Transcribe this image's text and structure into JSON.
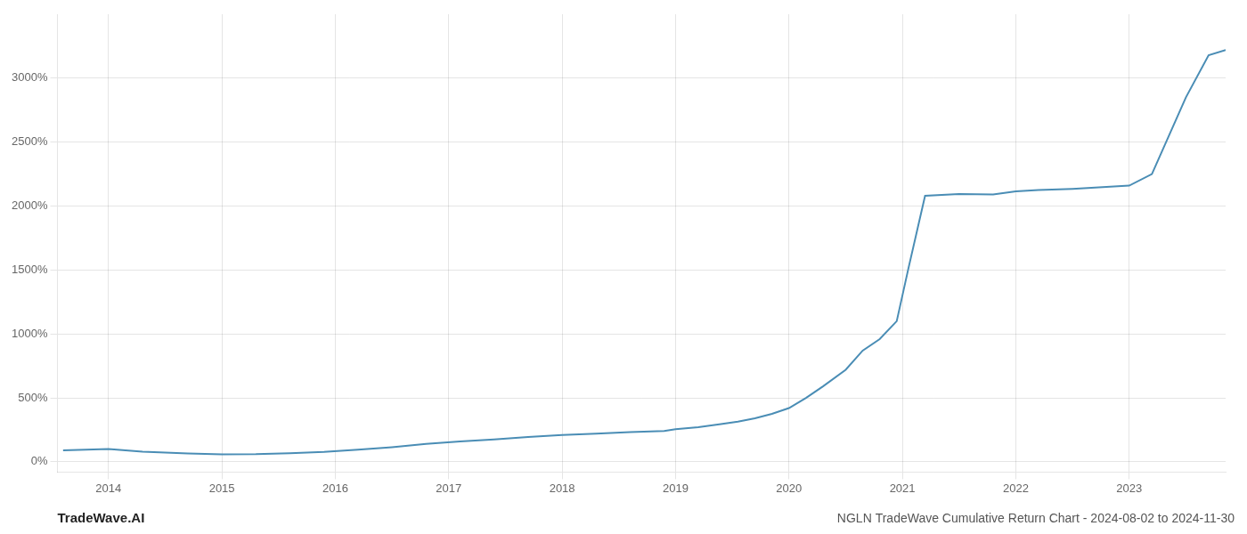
{
  "chart_data": {
    "type": "line",
    "title": "NGLN TradeWave Cumulative Return Chart - 2024-08-02 to 2024-11-30",
    "annotations": [
      "TradeWave.AI"
    ],
    "color": "#4a8db5",
    "grid": true,
    "x": [
      2013.6,
      2014.0,
      2014.3,
      2014.7,
      2015.0,
      2015.3,
      2015.6,
      2015.9,
      2016.2,
      2016.5,
      2016.8,
      2017.1,
      2017.4,
      2017.7,
      2018.0,
      2018.3,
      2018.6,
      2018.9,
      2019.0,
      2019.2,
      2019.4,
      2019.55,
      2019.7,
      2019.85,
      2020.0,
      2020.15,
      2020.3,
      2020.5,
      2020.65,
      2020.8,
      2020.95,
      2021.05,
      2021.2,
      2021.5,
      2021.8,
      2022.0,
      2022.2,
      2022.5,
      2022.8,
      2023.0,
      2023.2,
      2023.5,
      2023.7,
      2023.85
    ],
    "values": [
      90,
      100,
      80,
      65,
      58,
      60,
      68,
      78,
      95,
      115,
      140,
      160,
      175,
      195,
      210,
      220,
      232,
      242,
      255,
      270,
      295,
      315,
      340,
      375,
      420,
      500,
      590,
      720,
      870,
      960,
      1100,
      1500,
      2080,
      2095,
      2090,
      2115,
      2125,
      2135,
      2150,
      2160,
      2250,
      2850,
      3180,
      3220
    ],
    "xlim": [
      2013.55,
      2023.85
    ],
    "xticks": [
      2014,
      2015,
      2016,
      2017,
      2018,
      2019,
      2020,
      2021,
      2022,
      2023
    ],
    "ylim": [
      -80,
      3500
    ],
    "yticks": [
      {
        "value": 0,
        "label": "0%"
      },
      {
        "value": 500,
        "label": "500%"
      },
      {
        "value": 1000,
        "label": "1000%"
      },
      {
        "value": 1500,
        "label": "1500%"
      },
      {
        "value": 2000,
        "label": "2000%"
      },
      {
        "value": 2500,
        "label": "2500%"
      },
      {
        "value": 3000,
        "label": "3000%"
      }
    ]
  }
}
